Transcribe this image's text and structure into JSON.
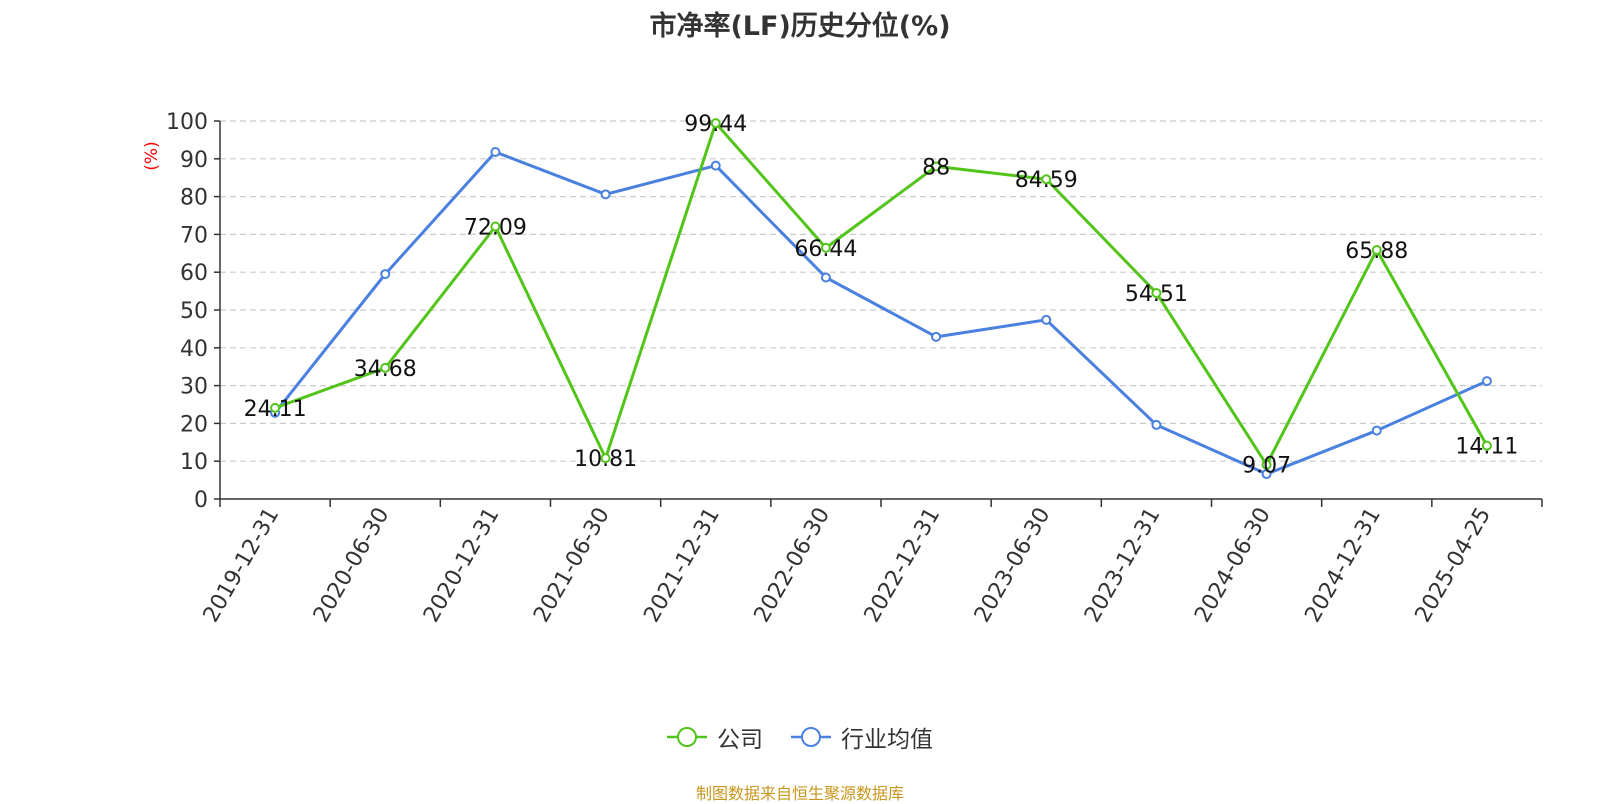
{
  "chart_data": {
    "type": "line",
    "title": "市净率(LF)历史分位(%)",
    "ylabel": "(%)",
    "xlabel": "",
    "categories": [
      "2019-12-31",
      "2020-06-30",
      "2020-12-31",
      "2021-06-30",
      "2021-12-31",
      "2022-06-30",
      "2022-12-31",
      "2023-06-30",
      "2023-12-31",
      "2024-06-30",
      "2024-12-31",
      "2025-04-25"
    ],
    "ylim": [
      0,
      100
    ],
    "yticks": [
      0,
      10,
      20,
      30,
      40,
      50,
      60,
      70,
      80,
      90,
      100
    ],
    "grid": true,
    "legend_position": "bottom",
    "series": [
      {
        "name": "公司",
        "color": "#52c41a",
        "values": [
          24.11,
          34.68,
          72.09,
          10.81,
          99.44,
          66.44,
          88,
          84.59,
          54.51,
          9.07,
          65.88,
          14.11
        ],
        "labels": [
          "24.11",
          "34.68",
          "72.09",
          "10.81",
          "99.44",
          "66.44",
          "88",
          "84.59",
          "54.51",
          "9.07",
          "65.88",
          "14.11"
        ]
      },
      {
        "name": "行业均值",
        "color": "#4a80e0",
        "values": [
          22.8,
          59.5,
          91.8,
          80.6,
          88.2,
          58.6,
          42.9,
          47.4,
          19.6,
          6.6,
          18.1,
          31.2
        ]
      }
    ]
  },
  "footer": {
    "source": "制图数据来自恒生聚源数据库"
  },
  "colors": {
    "axis": "#333333",
    "grid": "#cccccc",
    "ylabel": "#ff0000"
  }
}
